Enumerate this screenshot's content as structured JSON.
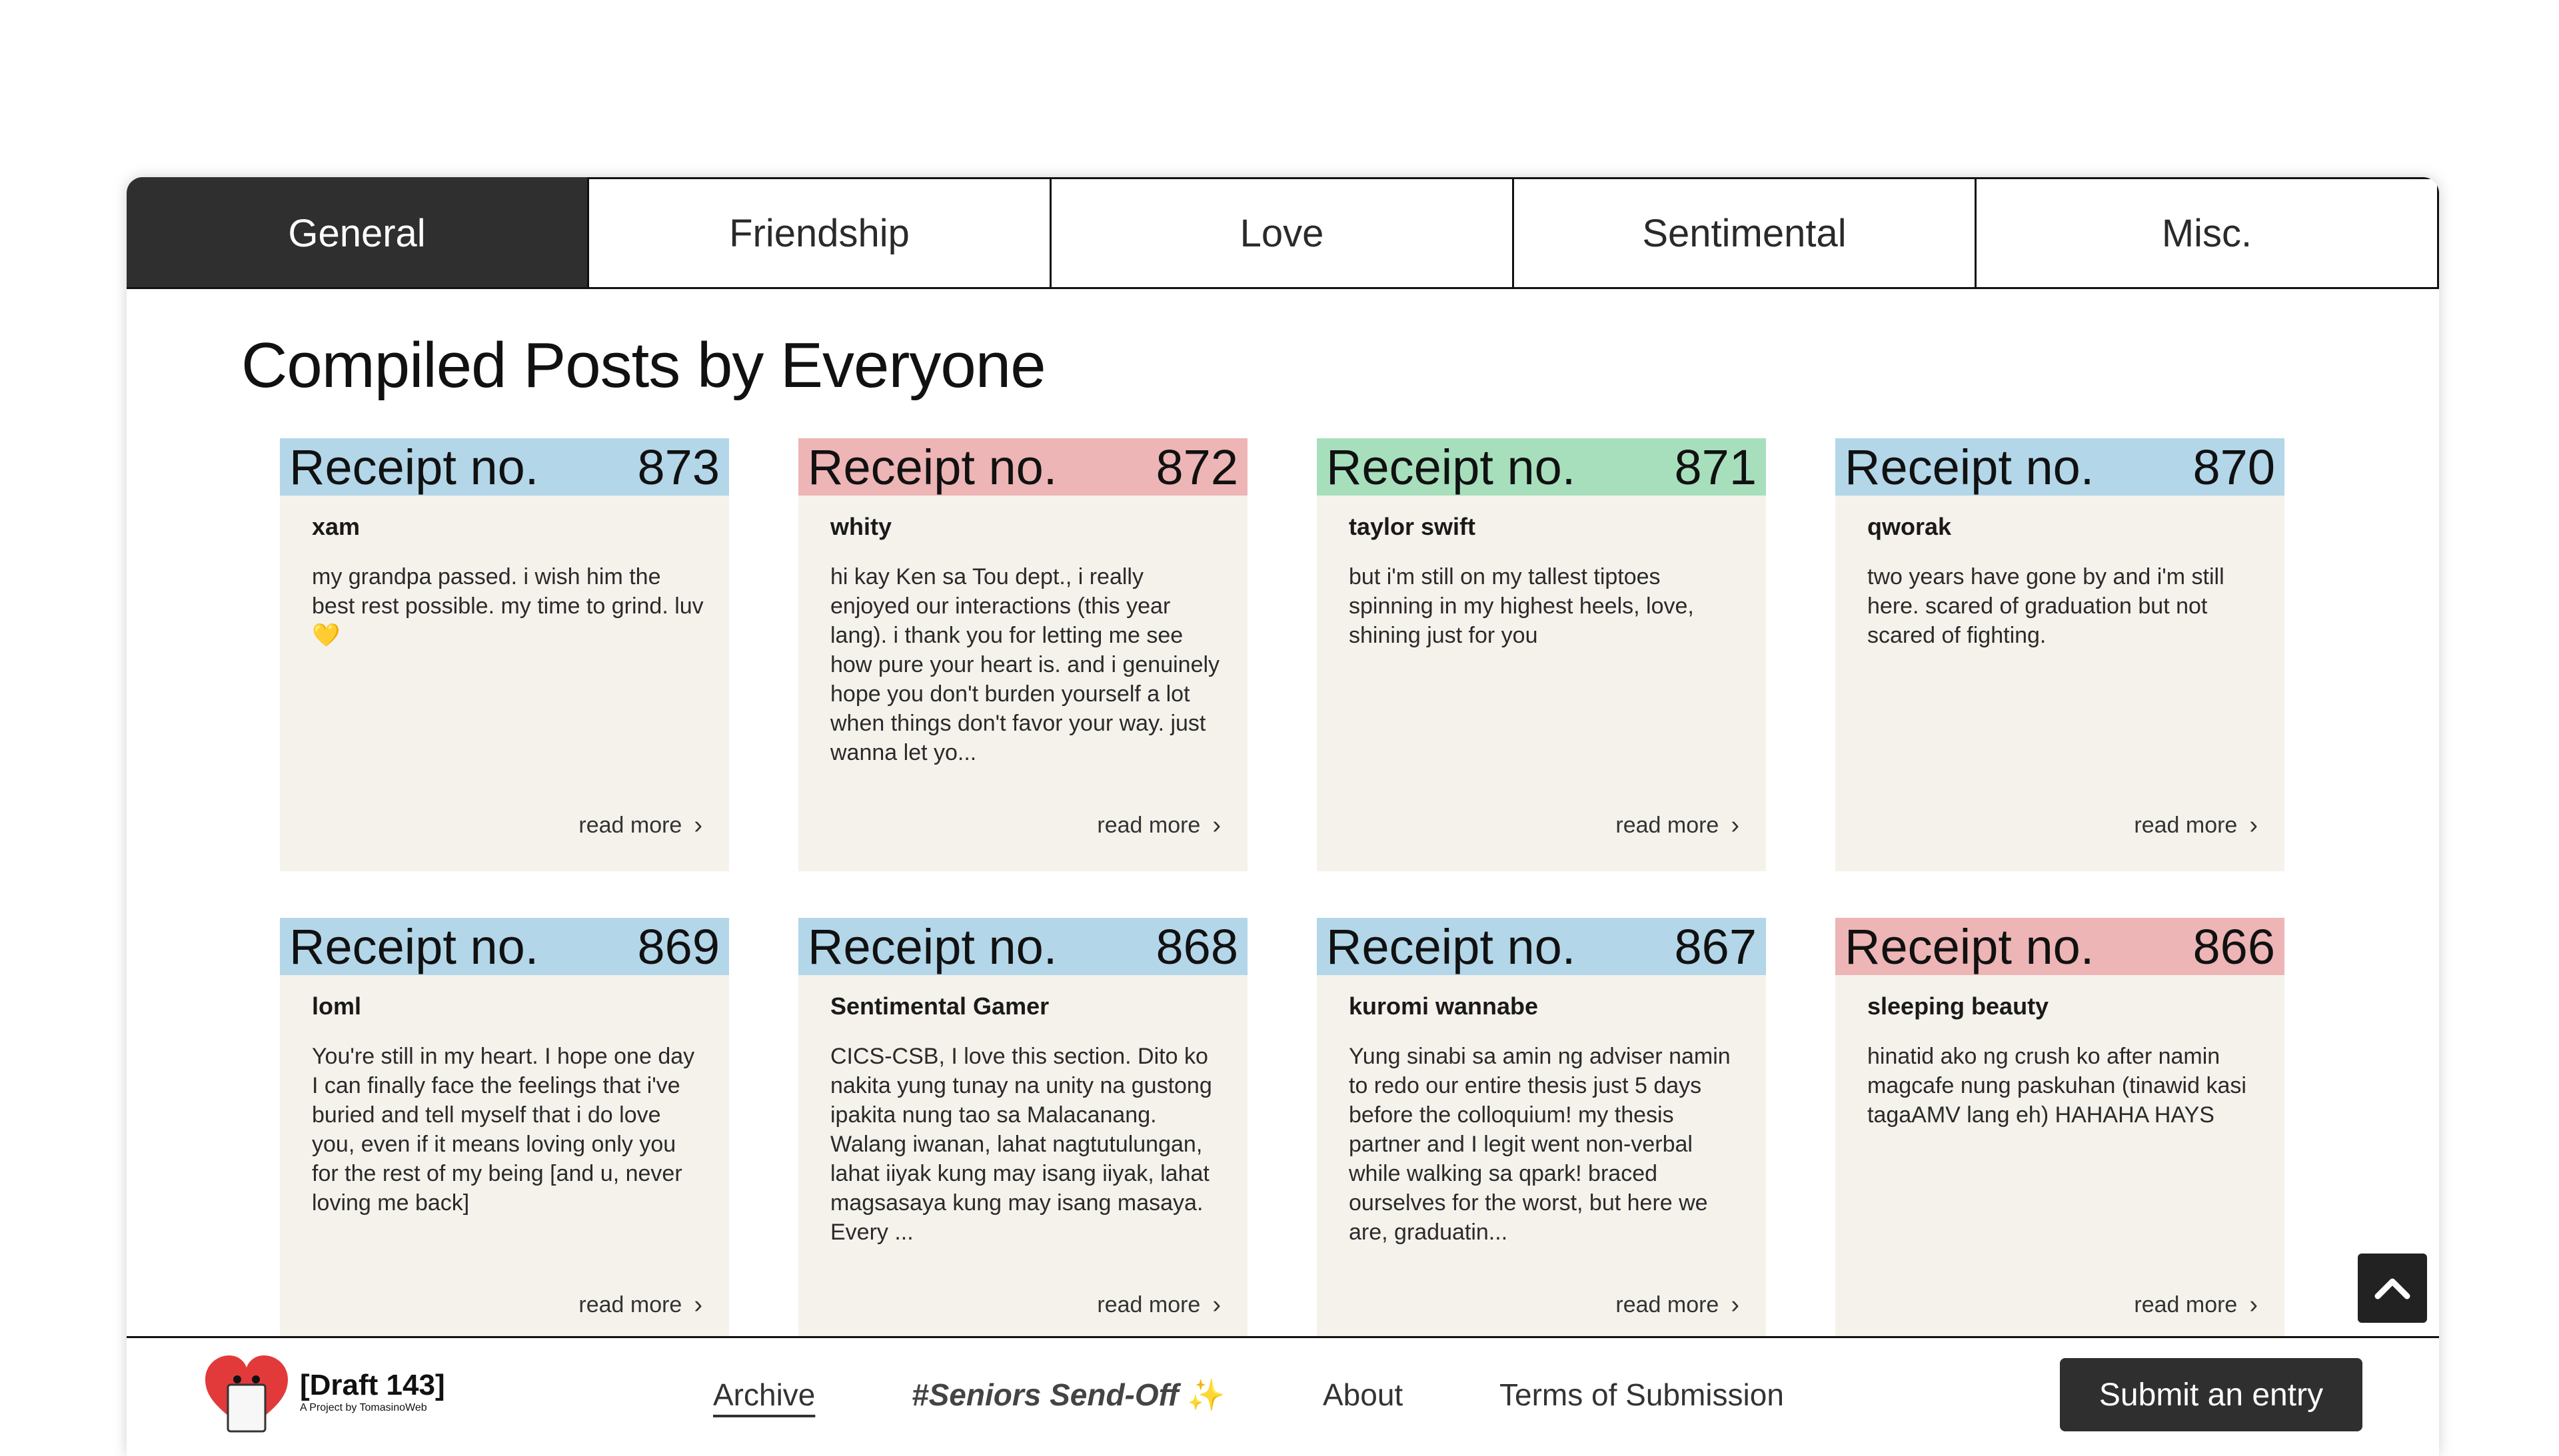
{
  "tabs": [
    {
      "label": "General",
      "active": true
    },
    {
      "label": "Friendship",
      "active": false
    },
    {
      "label": "Love",
      "active": false
    },
    {
      "label": "Sentimental",
      "active": false
    },
    {
      "label": "Misc.",
      "active": false
    }
  ],
  "page_title": "Compiled Posts by Everyone",
  "card_colors": {
    "blue": "#b3d6e9",
    "pink": "#edb5b5",
    "green": "#a7dfbd"
  },
  "receipt_label": "Receipt no.",
  "read_more_label": "read more",
  "cards": [
    {
      "number": "873",
      "color": "blue",
      "author": "xam",
      "text": "my grandpa passed. i wish him the best rest possible. my time to grind. luv",
      "emoji": "💛"
    },
    {
      "number": "872",
      "color": "pink",
      "author": "whity",
      "text": "hi kay Ken sa Tou dept., i really enjoyed our interactions (this year lang). i thank you for letting me see how pure your heart is. and i genuinely hope you don't burden yourself a lot when things don't favor your way. just wanna let yo...",
      "emoji": ""
    },
    {
      "number": "871",
      "color": "green",
      "author": "taylor swift",
      "text": "but i'm still on my tallest tiptoes spinning in my highest heels, love, shining just for you",
      "emoji": ""
    },
    {
      "number": "870",
      "color": "blue",
      "author": "qworak",
      "text": "two years have gone by and i'm still here. scared of graduation but not scared of fighting.",
      "emoji": ""
    },
    {
      "number": "869",
      "color": "blue",
      "author": "loml",
      "text": "You're still in my heart. I hope one day I can finally face the feelings that i've buried and tell myself that i do love you, even if it means loving only you for the rest of my being [and u, never loving me back]",
      "emoji": ""
    },
    {
      "number": "868",
      "color": "blue",
      "author": "Sentimental Gamer",
      "text": "CICS-CSB, I love this section. Dito ko nakita yung tunay na unity na gustong ipakita nung tao sa Malacanang. Walang iwanan, lahat nagtutulungan, lahat iiyak kung may isang iiyak, lahat magsasaya kung may isang masaya. Every ...",
      "emoji": ""
    },
    {
      "number": "867",
      "color": "blue",
      "author": "kuromi wannabe",
      "text": "Yung sinabi sa amin ng adviser namin to redo our entire thesis just 5 days before the colloquium! my thesis partner and I legit went non-verbal while walking sa qpark! braced ourselves for the worst, but here we are, graduatin...",
      "emoji": ""
    },
    {
      "number": "866",
      "color": "pink",
      "author": "sleeping beauty",
      "text": "hinatid ako ng crush ko after namin magcafe nung paskuhan (tinawid kasi tagaAMV lang eh) HAHAHA HAYS",
      "emoji": ""
    }
  ],
  "footer": {
    "logo_title": "[Draft 143]",
    "logo_subtitle": "A Project by TomasinoWeb",
    "nav": {
      "archive": "Archive",
      "send_off": "#Seniors Send-Off",
      "send_off_emoji": "✨",
      "about": "About",
      "terms": "Terms of Submission"
    },
    "submit_label": "Submit an entry"
  },
  "icons": {
    "scroll_top": "chevron-up-icon",
    "read_more": "chevron-right-icon"
  }
}
